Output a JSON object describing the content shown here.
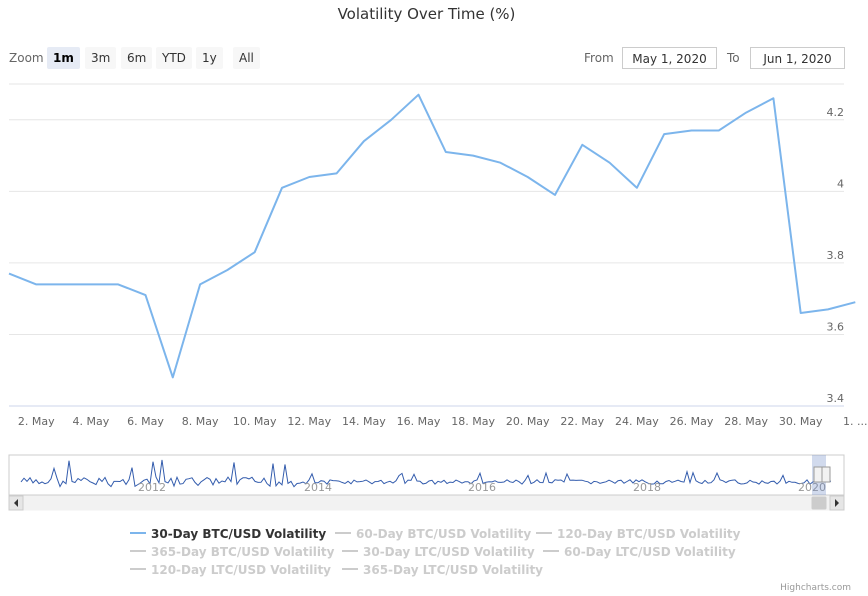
{
  "title": "Volatility Over Time (%)",
  "zoom": {
    "label": "Zoom",
    "buttons": [
      "1m",
      "3m",
      "6m",
      "YTD",
      "1y",
      "All"
    ],
    "active": "1m"
  },
  "range": {
    "from_label": "From",
    "from_value": "May 1, 2020",
    "to_label": "To",
    "to_value": "Jun 1, 2020"
  },
  "chart_data": {
    "type": "line",
    "title": "Volatility Over Time (%)",
    "x_range": [
      "2020-05-01",
      "2020-05-31"
    ],
    "ylim": [
      3.4,
      4.3
    ],
    "grid": true,
    "yticks": [
      "3.4",
      "3.6",
      "3.8",
      "4",
      "4.2"
    ],
    "xticks": [
      "2. May",
      "4. May",
      "6. May",
      "8. May",
      "10. May",
      "12. May",
      "14. May",
      "16. May",
      "18. May",
      "20. May",
      "22. May",
      "24. May",
      "26. May",
      "28. May",
      "30. May",
      "1. ..."
    ],
    "series": [
      {
        "name": "30-Day BTC/USD Volatility",
        "color": "#7cb5ec",
        "x": [
          "2020-05-01",
          "2020-05-02",
          "2020-05-03",
          "2020-05-04",
          "2020-05-05",
          "2020-05-06",
          "2020-05-07",
          "2020-05-08",
          "2020-05-09",
          "2020-05-10",
          "2020-05-11",
          "2020-05-12",
          "2020-05-13",
          "2020-05-14",
          "2020-05-15",
          "2020-05-16",
          "2020-05-17",
          "2020-05-18",
          "2020-05-19",
          "2020-05-20",
          "2020-05-21",
          "2020-05-22",
          "2020-05-23",
          "2020-05-24",
          "2020-05-25",
          "2020-05-26",
          "2020-05-27",
          "2020-05-28",
          "2020-05-29",
          "2020-05-30",
          "2020-05-31",
          "2020-06-01"
        ],
        "values": [
          3.77,
          3.74,
          3.74,
          3.74,
          3.74,
          3.71,
          3.48,
          3.74,
          3.78,
          3.83,
          4.01,
          4.04,
          4.05,
          4.14,
          4.2,
          4.27,
          4.11,
          4.1,
          4.08,
          4.04,
          3.99,
          4.13,
          4.08,
          4.01,
          4.16,
          4.17,
          4.17,
          4.22,
          4.26,
          3.66,
          3.67,
          3.69
        ]
      }
    ],
    "navigator": {
      "year_labels": [
        "2012",
        "2014",
        "2016",
        "2018",
        "2020"
      ]
    },
    "legend": [
      {
        "name": "30-Day BTC/USD Volatility",
        "visible": true
      },
      {
        "name": "60-Day BTC/USD Volatility",
        "visible": false
      },
      {
        "name": "120-Day BTC/USD Volatility",
        "visible": false
      },
      {
        "name": "365-Day BTC/USD Volatility",
        "visible": false
      },
      {
        "name": "30-Day LTC/USD Volatility",
        "visible": false
      },
      {
        "name": "60-Day LTC/USD Volatility",
        "visible": false
      },
      {
        "name": "120-Day LTC/USD Volatility",
        "visible": false
      },
      {
        "name": "365-Day LTC/USD Volatility",
        "visible": false
      }
    ]
  },
  "credits": "Highcharts.com"
}
